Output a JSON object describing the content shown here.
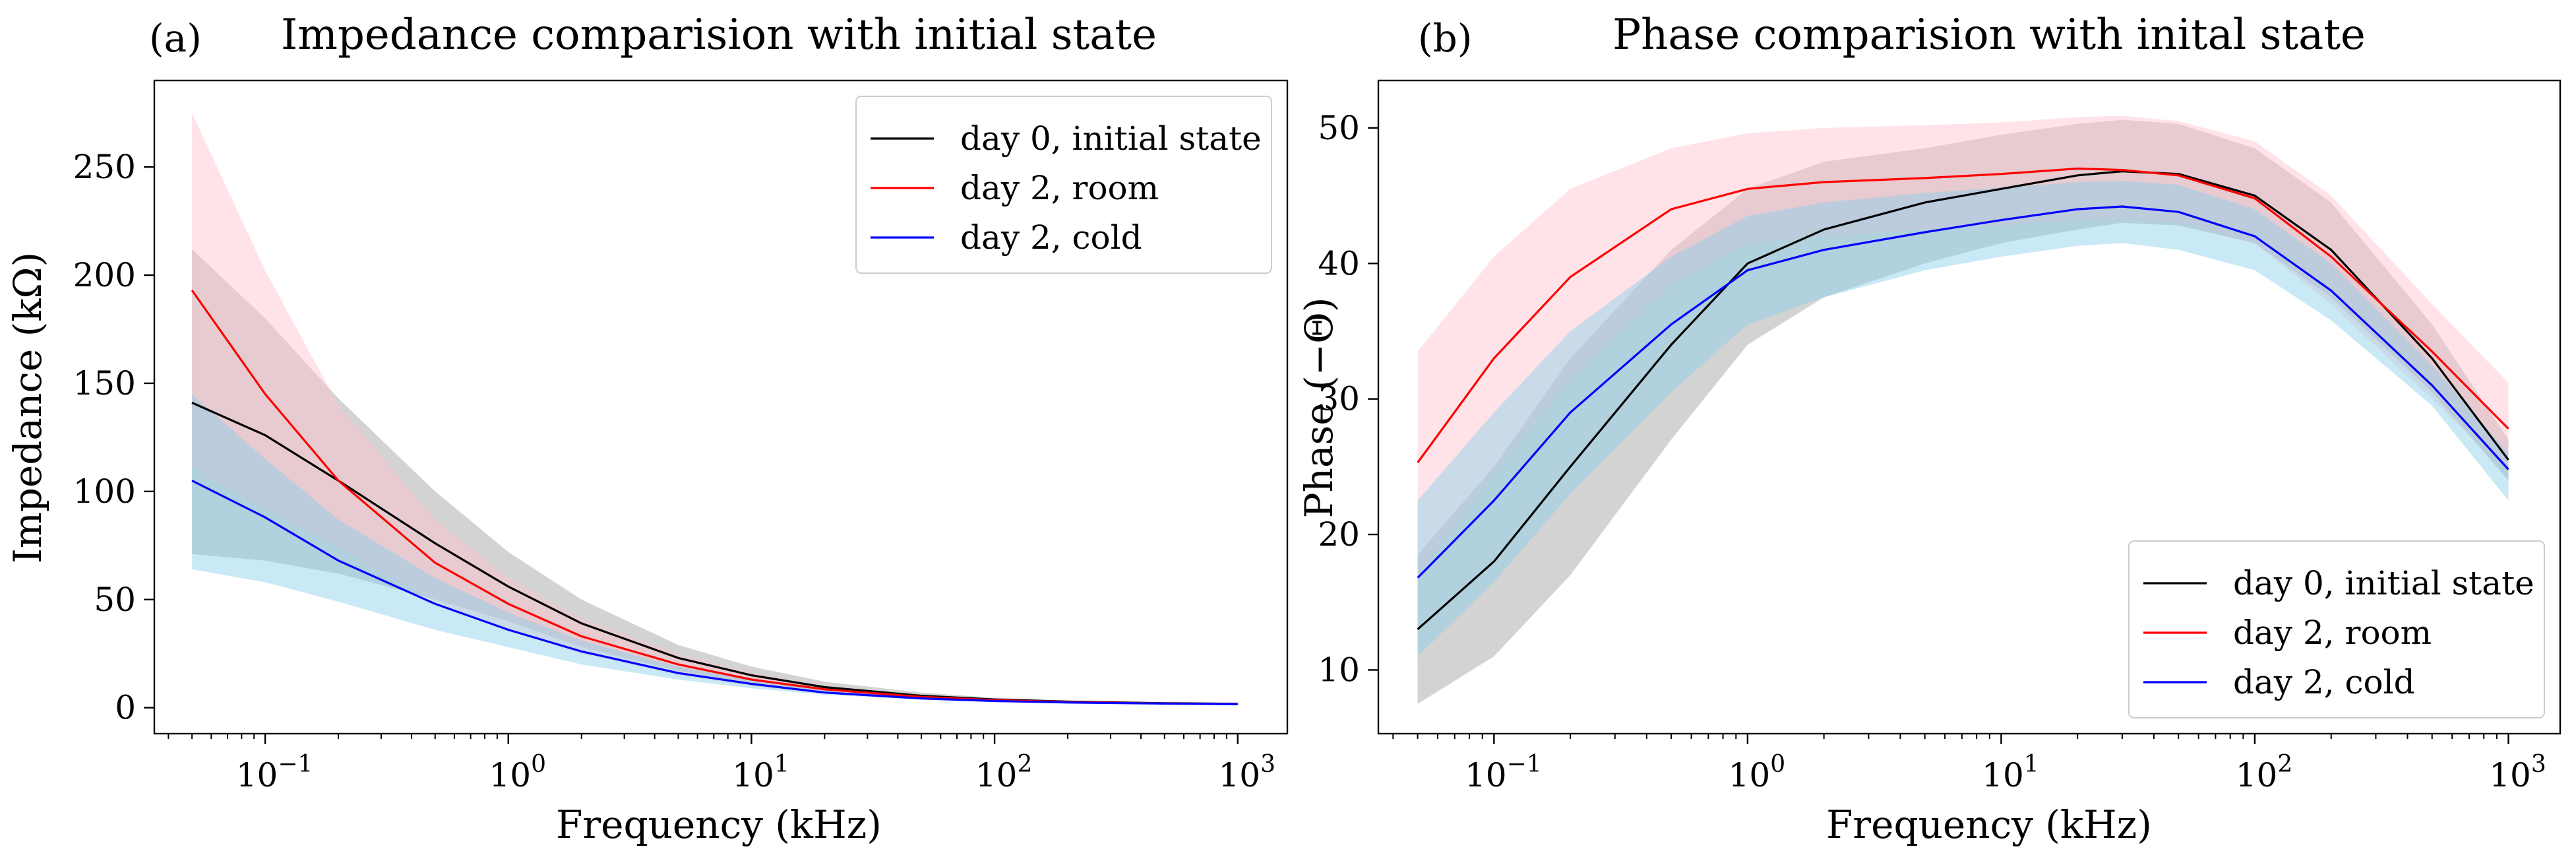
{
  "chart_data": [
    {
      "type": "line",
      "panel_label": "(a)",
      "title": "Impedance comparision with initial state",
      "xlabel": "Frequency (kHz)",
      "ylabel": "Impedance (kΩ)",
      "xscale": "log",
      "xlim": [
        0.035,
        1600
      ],
      "ylim": [
        -12,
        290
      ],
      "xticks": [
        {
          "value": 0.1,
          "base": "10",
          "exp": "−1"
        },
        {
          "value": 1,
          "base": "10",
          "exp": "0"
        },
        {
          "value": 10,
          "base": "10",
          "exp": "1"
        },
        {
          "value": 100,
          "base": "10",
          "exp": "2"
        },
        {
          "value": 1000,
          "base": "10",
          "exp": "3"
        }
      ],
      "yticks": [
        {
          "value": 0,
          "label": "0"
        },
        {
          "value": 50,
          "label": "50"
        },
        {
          "value": 100,
          "label": "100"
        },
        {
          "value": 150,
          "label": "150"
        },
        {
          "value": 200,
          "label": "200"
        },
        {
          "value": 250,
          "label": "250"
        }
      ],
      "legend_position": "top-right",
      "x": [
        0.05,
        0.1,
        0.2,
        0.5,
        1,
        2,
        5,
        10,
        20,
        50,
        100,
        200,
        500,
        1000
      ],
      "series": [
        {
          "name": "day 0, initial state",
          "color": "#000000",
          "band_color": "#a8a8a8",
          "band_opacity": 0.5,
          "values": [
            141,
            126,
            105,
            76,
            56,
            39,
            23,
            15,
            9.5,
            5.5,
            3.8,
            2.8,
            2.1,
            1.8
          ],
          "upper": [
            212,
            180,
            143,
            100,
            72,
            50,
            29,
            19,
            12,
            7,
            4.6,
            3.3,
            2.4,
            2.0
          ],
          "lower": [
            71,
            68,
            62,
            50,
            40,
            28,
            17,
            11,
            7,
            4.2,
            3.0,
            2.3,
            1.8,
            1.6
          ]
        },
        {
          "name": "day 2, room",
          "color": "#ff0000",
          "band_color": "#ffc0cb",
          "band_opacity": 0.45,
          "values": [
            193,
            145,
            105,
            67,
            48,
            33,
            20,
            13,
            8.5,
            5,
            3.5,
            2.6,
            2.0,
            1.7
          ],
          "upper": [
            275,
            202,
            140,
            87,
            60,
            41,
            25,
            16,
            10,
            6,
            4.0,
            2.9,
            2.2,
            1.9
          ],
          "lower": [
            111,
            92,
            74,
            49,
            36,
            25,
            15,
            10,
            6.5,
            4.0,
            3.0,
            2.3,
            1.8,
            1.5
          ]
        },
        {
          "name": "day 2, cold",
          "color": "#0000ff",
          "band_color": "#87ceeb",
          "band_opacity": 0.45,
          "values": [
            105,
            88,
            68,
            48,
            36,
            26,
            16,
            11,
            7,
            4.3,
            3.1,
            2.4,
            1.9,
            1.6
          ],
          "upper": [
            145,
            115,
            87,
            60,
            44,
            31,
            19,
            13,
            8.5,
            5.0,
            3.5,
            2.7,
            2.1,
            1.8
          ],
          "lower": [
            64,
            58,
            49,
            36,
            28,
            20,
            13,
            9,
            6,
            3.7,
            2.7,
            2.1,
            1.7,
            1.4
          ]
        }
      ]
    },
    {
      "type": "line",
      "panel_label": "(b)",
      "title": "Phase comparision with inital state",
      "xlabel": "Frequency (kHz)",
      "ylabel": "Phase (−Θ)",
      "xscale": "log",
      "xlim": [
        0.035,
        1600
      ],
      "ylim": [
        5.3,
        53.5
      ],
      "xticks": [
        {
          "value": 0.1,
          "base": "10",
          "exp": "−1"
        },
        {
          "value": 1,
          "base": "10",
          "exp": "0"
        },
        {
          "value": 10,
          "base": "10",
          "exp": "1"
        },
        {
          "value": 100,
          "base": "10",
          "exp": "2"
        },
        {
          "value": 1000,
          "base": "10",
          "exp": "3"
        }
      ],
      "yticks": [
        {
          "value": 10,
          "label": "10"
        },
        {
          "value": 20,
          "label": "20"
        },
        {
          "value": 30,
          "label": "30"
        },
        {
          "value": 40,
          "label": "40"
        },
        {
          "value": 50,
          "label": "50"
        }
      ],
      "legend_position": "bottom-right",
      "x": [
        0.05,
        0.1,
        0.2,
        0.5,
        1,
        2,
        5,
        10,
        20,
        30,
        50,
        100,
        200,
        500,
        1000
      ],
      "series": [
        {
          "name": "day 0, initial state",
          "color": "#000000",
          "band_color": "#a8a8a8",
          "band_opacity": 0.5,
          "values": [
            13,
            18,
            25,
            34,
            40,
            42.5,
            44.5,
            45.5,
            46.5,
            46.8,
            46.6,
            45,
            41,
            33,
            25.5
          ],
          "upper": [
            18.5,
            25,
            33,
            41,
            45.5,
            47.5,
            48.5,
            49.5,
            50.3,
            50.6,
            50.3,
            48.5,
            44.5,
            35.5,
            27
          ],
          "lower": [
            7.5,
            11,
            17,
            27,
            34,
            37.5,
            40,
            41.5,
            42.5,
            43,
            42.8,
            41.5,
            37.5,
            30.5,
            24
          ]
        },
        {
          "name": "day 2, room",
          "color": "#ff0000",
          "band_color": "#ffc0cb",
          "band_opacity": 0.45,
          "values": [
            25.3,
            33,
            39,
            44,
            45.5,
            46,
            46.3,
            46.6,
            47,
            46.9,
            46.5,
            44.8,
            40.5,
            33.5,
            27.8
          ],
          "upper": [
            33.5,
            40.5,
            45.5,
            48.5,
            49.6,
            50,
            50.2,
            50.4,
            50.8,
            50.9,
            50.5,
            49,
            45,
            37,
            31.2
          ],
          "lower": [
            17,
            24.5,
            31.5,
            38.5,
            41.5,
            42,
            42.5,
            42.8,
            43.2,
            43.3,
            43,
            41.5,
            37,
            30,
            24.5
          ]
        },
        {
          "name": "day 2, cold",
          "color": "#0000ff",
          "band_color": "#87ceeb",
          "band_opacity": 0.45,
          "values": [
            16.8,
            22.5,
            29,
            35.5,
            39.5,
            41,
            42.3,
            43.2,
            44,
            44.2,
            43.8,
            42,
            38,
            31,
            24.8
          ],
          "upper": [
            22.5,
            29,
            35,
            40.5,
            43.5,
            44.5,
            45.2,
            45.6,
            46,
            46.1,
            45.8,
            44,
            40,
            32.5,
            26
          ],
          "lower": [
            11,
            16.5,
            23,
            30.5,
            35.5,
            37.5,
            39.5,
            40.5,
            41.3,
            41.5,
            41,
            39.5,
            35.8,
            29.5,
            22.5
          ]
        }
      ]
    }
  ]
}
